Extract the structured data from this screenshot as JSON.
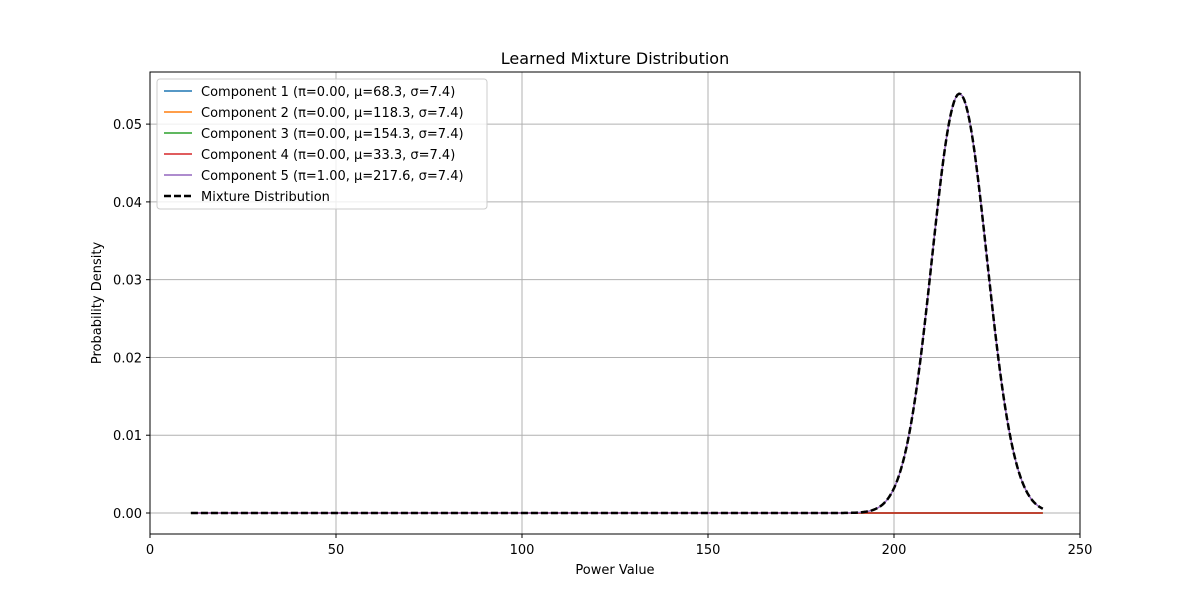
{
  "chart_data": {
    "type": "line",
    "title": "Learned Mixture Distribution",
    "xlabel": "Power Value",
    "ylabel": "Probability Density",
    "xlim": [
      0,
      250
    ],
    "ylim": [
      -0.0027,
      0.0567
    ],
    "xticks": [
      0,
      50,
      100,
      150,
      200,
      250
    ],
    "xtick_labels": [
      "0",
      "50",
      "100",
      "150",
      "200",
      "250"
    ],
    "yticks": [
      0,
      0.01,
      0.02,
      0.03,
      0.04,
      0.05
    ],
    "ytick_labels": [
      "0.00",
      "0.01",
      "0.02",
      "0.03",
      "0.04",
      "0.05"
    ],
    "x_range": [
      11,
      240
    ],
    "grid": true,
    "legend_position": "upper-left",
    "series": [
      {
        "name": "Component 1 (π=0.00, μ=68.3, σ=7.4)",
        "weight": 0.0,
        "mu": 68.3,
        "sigma": 7.4,
        "color": "#1f77b4",
        "style": "solid"
      },
      {
        "name": "Component 2 (π=0.00, μ=118.3, σ=7.4)",
        "weight": 0.0,
        "mu": 118.3,
        "sigma": 7.4,
        "color": "#ff7f0e",
        "style": "solid"
      },
      {
        "name": "Component 3 (π=0.00, μ=154.3, σ=7.4)",
        "weight": 0.0,
        "mu": 154.3,
        "sigma": 7.4,
        "color": "#2ca02c",
        "style": "solid"
      },
      {
        "name": "Component 4 (π=0.00, μ=33.3, σ=7.4)",
        "weight": 0.0,
        "mu": 33.3,
        "sigma": 7.4,
        "color": "#d62728",
        "style": "solid"
      },
      {
        "name": "Component 5 (π=1.00, μ=217.6, σ=7.4)",
        "weight": 1.0,
        "mu": 217.6,
        "sigma": 7.4,
        "color": "#9467bd",
        "style": "solid"
      },
      {
        "name": "Mixture Distribution",
        "mixture": true,
        "color": "#000000",
        "style": "dashed"
      }
    ]
  }
}
